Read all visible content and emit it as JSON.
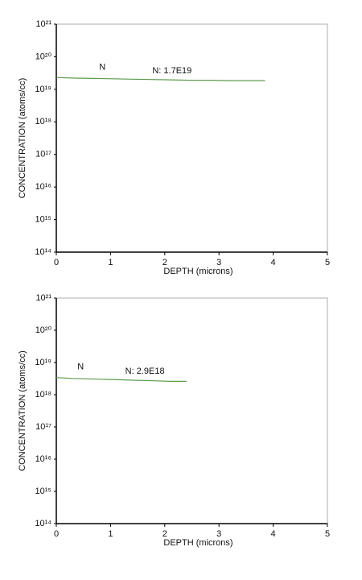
{
  "chart_data": [
    {
      "type": "line",
      "xlabel": "DEPTH (microns)",
      "ylabel": "CONCENTRATION (atoms/cc)",
      "xlim": [
        0,
        5
      ],
      "xticks": [
        0,
        1,
        2,
        3,
        4,
        5
      ],
      "ylim": [
        100000000000000.0,
        1e+21
      ],
      "log_y": true,
      "yticks": [
        {
          "value": 100000000000000.0,
          "label": "10¹⁴"
        },
        {
          "value": 1000000000000000.0,
          "label": "10¹⁵"
        },
        {
          "value": 1e+16,
          "label": "10¹⁶"
        },
        {
          "value": 1e+17,
          "label": "10¹⁷"
        },
        {
          "value": 1e+18,
          "label": "10¹⁸"
        },
        {
          "value": 1e+19,
          "label": "10¹⁹"
        },
        {
          "value": 1e+20,
          "label": "10²⁰"
        },
        {
          "value": 1e+21,
          "label": "10²¹"
        }
      ],
      "series": [
        {
          "name": "N",
          "color": "#5c9a4c",
          "x": [
            0,
            0.35,
            0.7,
            1.05,
            1.4,
            1.75,
            2.1,
            2.45,
            2.8,
            3.15,
            3.5,
            3.85
          ],
          "values": [
            2.3e+19,
            2.2e+19,
            2.15e+19,
            2.1e+19,
            2.05e+19,
            2e+19,
            1.95e+19,
            1.9e+19,
            1.9e+19,
            1.85e+19,
            1.85e+19,
            1.85e+19
          ]
        }
      ],
      "annotations": [
        "N: 1.7E19"
      ]
    },
    {
      "type": "line",
      "xlabel": "DEPTH (microns)",
      "ylabel": "CONCENTRATION (atoms/cc)",
      "xlim": [
        0,
        5
      ],
      "xticks": [
        0,
        1,
        2,
        3,
        4,
        5
      ],
      "ylim": [
        100000000000000.0,
        1e+21
      ],
      "log_y": true,
      "yticks": [
        {
          "value": 100000000000000.0,
          "label": "10¹⁴"
        },
        {
          "value": 1000000000000000.0,
          "label": "10¹⁵"
        },
        {
          "value": 1e+16,
          "label": "10¹⁶"
        },
        {
          "value": 1e+17,
          "label": "10¹⁷"
        },
        {
          "value": 1e+18,
          "label": "10¹⁸"
        },
        {
          "value": 1e+19,
          "label": "10¹⁹"
        },
        {
          "value": 1e+20,
          "label": "10²⁰"
        },
        {
          "value": 1e+21,
          "label": "10²¹"
        }
      ],
      "series": [
        {
          "name": "N",
          "color": "#5c9a4c",
          "x": [
            0,
            0.3,
            0.6,
            0.9,
            1.2,
            1.5,
            1.8,
            2.1,
            2.4
          ],
          "values": [
            3.4e+18,
            3.2e+18,
            3.1e+18,
            3e+18,
            2.9e+18,
            2.8e+18,
            2.7e+18,
            2.6e+18,
            2.6e+18
          ]
        }
      ],
      "annotations": [
        "N: 2.9E18"
      ]
    }
  ]
}
